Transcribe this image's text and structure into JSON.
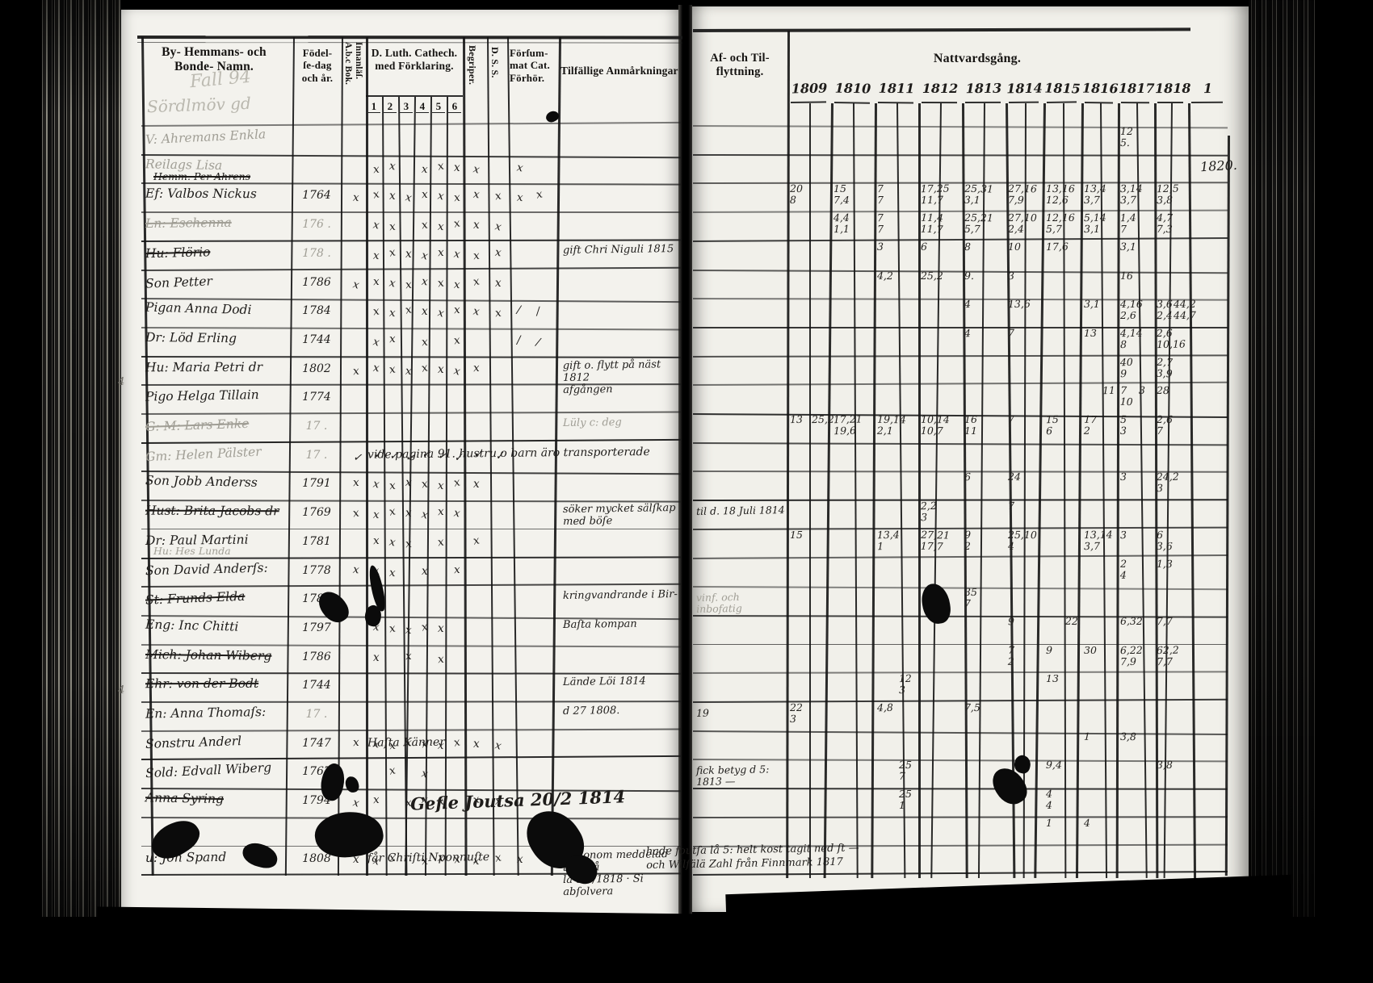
{
  "document_type": "Swedish parish catechism and communion ledger (scanned book spread)",
  "left_page": {
    "headers": {
      "name_col": "By- Hemmans- och\nBonde- Namn.",
      "birth_col": "Födel-\nſe-dag\noch år.",
      "abc_col": "A.b.c Bok.\nInnanläſ.",
      "catechism_col": "D. Luth. Cathech.\nmed Förklaring.",
      "catechism_subcols": [
        "1",
        "2",
        "3",
        "4",
        "5",
        "6"
      ],
      "begriper_col": "Begriper.",
      "dss_col": "D. S. S.",
      "forsummat_col": "Förſum-\nmat Cat.\nFörhör.",
      "remarks_col": "Tilfällige Anmårkningar"
    },
    "flourish": [
      "Fall 94",
      "Sördlmöv gd"
    ],
    "margin_marks": [
      "4",
      "4"
    ]
  },
  "right_page": {
    "headers": {
      "afflytt_col": "Af- och Til-\nflyttning.",
      "nattvard_col": "Nattvardsgång.",
      "years": [
        "1809",
        "1810",
        "1811",
        "1812",
        "1813",
        "1814",
        "1815",
        "1816",
        "1817",
        "1818",
        "1"
      ]
    },
    "annotations": {
      "year_note": "1820.",
      "bottom_note": "hade foutſa lå 5: helt kost tagit ned ſt —\noch Wilſälä Zahl från Finnmark 1817"
    }
  },
  "rows": [
    {
      "name": "V: Ahremans  Enkla",
      "ns": "faint",
      "birth": "",
      "marks": "",
      "natt": [
        [
          8,
          0,
          "12\n5."
        ]
      ]
    },
    {
      "name": "Reilags Lisa",
      "ns": "faint",
      "name2": "Hemm. Per Ahrens",
      "n2s": "struck",
      "birth": "",
      "marks": ".xx.xxxx.x.",
      "natt": []
    },
    {
      "name": "Ef: Valbos Nickus",
      "birth": "1764",
      "marks": "xxxxxxxxxxx",
      "natt": [
        [
          0,
          0,
          "20\n8"
        ],
        [
          1,
          0,
          "15\n7,4"
        ],
        [
          2,
          0,
          "7\n7"
        ],
        [
          3,
          0,
          "17,25\n11,7"
        ],
        [
          4,
          0,
          "25,31\n3,1"
        ],
        [
          5,
          0,
          "27,16\n7,9"
        ],
        [
          6,
          0,
          "13,16\n12,6"
        ],
        [
          7,
          0,
          "13,4\n3,7"
        ],
        [
          8,
          0,
          "3,14\n3,7"
        ],
        [
          9,
          0,
          "12,5\n3,8"
        ]
      ]
    },
    {
      "name": "Ln: Eschenna",
      "ns": "struck-faint",
      "birth": "176 .",
      "bs": "faint",
      "marks": ".xx.xxxxx..",
      "natt": [
        [
          1,
          0,
          "4,4\n1,1"
        ],
        [
          2,
          0,
          "7\n7"
        ],
        [
          3,
          0,
          "11,4\n11,7"
        ],
        [
          4,
          0,
          "25,21\n5,7"
        ],
        [
          5,
          0,
          "27,10\n2,4"
        ],
        [
          6,
          0,
          "12,16\n5,7"
        ],
        [
          7,
          0,
          "5,14\n3,1"
        ],
        [
          8,
          0,
          "1,4\n7"
        ],
        [
          9,
          0,
          "4,7\n7,3"
        ]
      ]
    },
    {
      "name": "Hu: Flörio",
      "ns": "struck",
      "birth": "178 .",
      "bs": "faint",
      "marks": ".xxxxxxxx..",
      "remark": "gift Chri Niguli 1815",
      "natt": [
        [
          2,
          0,
          "3"
        ],
        [
          3,
          0,
          "6"
        ],
        [
          4,
          0,
          "8"
        ],
        [
          5,
          0,
          "10"
        ],
        [
          6,
          0,
          "17,6"
        ],
        [
          8,
          0,
          "3,1"
        ]
      ]
    },
    {
      "name": "Son Petter",
      "birth": "1786",
      "marks": "xxxxxxxxx..",
      "natt": [
        [
          2,
          0,
          "4,2"
        ],
        [
          3,
          0,
          "25,2"
        ],
        [
          4,
          0,
          "9."
        ],
        [
          5,
          0,
          "3"
        ],
        [
          8,
          0,
          "16"
        ]
      ]
    },
    {
      "name": "Pigan Anna Dodi",
      "birth": "1784",
      "marks": ".xxxxxxxx//",
      "natt": [
        [
          4,
          0,
          "4"
        ],
        [
          5,
          0,
          "13,6"
        ],
        [
          7,
          0,
          "3,1"
        ],
        [
          8,
          0,
          "4,16\n2,6"
        ],
        [
          9,
          0,
          "3,6\n2,4"
        ],
        [
          9,
          1,
          "44,2\n44,7"
        ]
      ]
    },
    {
      "name": "Dr: Löd Erling",
      "birth": "1744",
      "marks": ".xx.x.x..//",
      "natt": [
        [
          4,
          0,
          "4"
        ],
        [
          5,
          0,
          "7"
        ],
        [
          7,
          0,
          "13"
        ],
        [
          8,
          0,
          "4,14\n8"
        ],
        [
          9,
          0,
          "2,6\n10,16"
        ]
      ]
    },
    {
      "name": "Hu: Maria Petri dr",
      "birth": "1802",
      "marks": "xxxxxxxx...",
      "remark": "gift o. flytt på näst 1812\nafgången",
      "natt": [
        [
          8,
          0,
          "40\n9"
        ],
        [
          9,
          0,
          "2,7\n3,9"
        ]
      ]
    },
    {
      "name": "Pigo Helga Tillain",
      "birth": "1774",
      "marks": "...........",
      "natt": [
        [
          7,
          1,
          "11"
        ],
        [
          8,
          0,
          "7\n10"
        ],
        [
          8,
          1,
          "3"
        ],
        [
          9,
          0,
          "28"
        ]
      ]
    },
    {
      "name": "G: M: Lars Enke",
      "ns": "struck-faint",
      "birth": "17 .",
      "bs": "faint",
      "marks": "...........",
      "remark": "Lüly c: deg",
      "rs": "faint",
      "natt": [
        [
          0,
          0,
          "13"
        ],
        [
          0,
          1,
          "25,2"
        ],
        [
          1,
          0,
          "17,21\n19,6"
        ],
        [
          2,
          0,
          "19,14\n2,1"
        ],
        [
          3,
          0,
          "10,14\n10,7"
        ],
        [
          4,
          0,
          "16\n11"
        ],
        [
          5,
          0,
          "7"
        ],
        [
          6,
          0,
          "15\n6"
        ],
        [
          7,
          0,
          "17\n2"
        ],
        [
          8,
          0,
          "5\n3"
        ],
        [
          9,
          0,
          "2,6\n7"
        ]
      ]
    },
    {
      "name": "Gm: Helen Pälster",
      "ns": "faint",
      "birth": "17 .",
      "bs": "faint",
      "marks": "vvvvvvvvv..",
      "note_mid": "vide pagina 91.  hustru o barn äro transporterade",
      "natt": []
    },
    {
      "name": "Son Jobb Anderss",
      "birth": "1791",
      "marks": "xxxxxxxx...",
      "natt": [
        [
          4,
          0,
          "6"
        ],
        [
          5,
          0,
          "24"
        ],
        [
          8,
          0,
          "3"
        ],
        [
          9,
          0,
          "24,2\n3"
        ]
      ]
    },
    {
      "name": "Hust: Brita Jacobs dr",
      "ns": "struck",
      "birth": "1769",
      "marks": "xxxxxxx....",
      "remark": "söker mycket sälſkap med böſe",
      "afflytt": "til d. 18 Juli 1814",
      "natt": [
        [
          3,
          0,
          "2,2\n3"
        ],
        [
          5,
          0,
          "7"
        ]
      ]
    },
    {
      "name": "Dr: Paul Martini",
      "birth": "1781",
      "name2": "Hu: Hes Lunda",
      "n2s": "faint",
      "marks": ".xxx.x.x...",
      "natt": [
        [
          0,
          0,
          "15"
        ],
        [
          2,
          0,
          "13,4\n1"
        ],
        [
          3,
          0,
          "27,21\n17,7"
        ],
        [
          4,
          0,
          "9\n2"
        ],
        [
          5,
          0,
          "25,10\n4"
        ],
        [
          7,
          0,
          "13,14\n3,7"
        ],
        [
          8,
          0,
          "3"
        ],
        [
          9,
          0,
          "6\n3,6"
        ]
      ]
    },
    {
      "name": "Son David Anderſs:",
      "birth": "1778",
      "marks": "xxx.x.x....",
      "natt": [
        [
          8,
          0,
          "2\n4"
        ],
        [
          9,
          0,
          "1,3"
        ]
      ]
    },
    {
      "name": "St: Frunds Elda",
      "ns": "struck",
      "birth": "1786",
      "remark": "kringvandrande i Bir-",
      "afflytt": "vinf. och inbofatig",
      "as": "faint",
      "natt": [
        [
          4,
          0,
          "35\n7"
        ]
      ]
    },
    {
      "name": "Eng: Inc Chitti",
      "birth": "1797",
      "marks": ".xxxxx.....",
      "remark": "Baſta kompan",
      "natt": [
        [
          5,
          0,
          "9"
        ],
        [
          6,
          1,
          "22"
        ],
        [
          8,
          0,
          "6,32"
        ],
        [
          9,
          0,
          "7,7"
        ]
      ]
    },
    {
      "name": "Mich: Johan Wiberg",
      "ns": "struck",
      "birth": "1786",
      "marks": ".x.x.x.....",
      "natt": [
        [
          5,
          0,
          "7\n2"
        ],
        [
          6,
          0,
          "9"
        ],
        [
          7,
          0,
          "30"
        ],
        [
          8,
          0,
          "6,22\n7,9"
        ],
        [
          9,
          0,
          "62,2\n7,7"
        ]
      ]
    },
    {
      "name": "Ehr: von der Bodt",
      "ns": "struck",
      "birth": "1744",
      "remark": "Lände Löi 1814",
      "natt": [
        [
          2,
          1,
          "12\n3"
        ],
        [
          6,
          0,
          "13"
        ]
      ]
    },
    {
      "name": "En: Anna Thomaſs:",
      "birth": "17 .",
      "bs": "faint",
      "remark": "d 27 1808.",
      "afflytt": "19",
      "natt": [
        [
          0,
          0,
          "22\n3"
        ],
        [
          2,
          0,
          "4,8"
        ],
        [
          4,
          0,
          "7,5"
        ]
      ]
    },
    {
      "name": "Sonstru Anderl",
      "birth": "1747",
      "marks": "xxxxxxxxx..",
      "note_mid": "Haſta Känner",
      "natt": [
        [
          7,
          0,
          "1"
        ],
        [
          8,
          0,
          "3,8"
        ]
      ]
    },
    {
      "name": "Sold: Edvall Wiberg",
      "birth": "1767",
      "marks": "..x.x......",
      "afflytt": "fick betyg d 5: 1813 —",
      "natt": [
        [
          2,
          1,
          "25\n7"
        ],
        [
          6,
          0,
          "9,4"
        ],
        [
          9,
          0,
          "3,8"
        ]
      ]
    },
    {
      "name": "Anna Syring",
      "ns": "struck",
      "birth": "1794",
      "marks": "xx.xxx.xx..",
      "note_big": "Gefle Joutsa 20/2 1814",
      "natt": [
        [
          2,
          1,
          "25\n1"
        ],
        [
          6,
          0,
          "4\n4"
        ]
      ]
    },
    {
      "name": "",
      "birth": "",
      "marks": "",
      "natt": [
        [
          6,
          0,
          "1"
        ],
        [
          7,
          0,
          "4"
        ]
      ]
    },
    {
      "name": "u: Jon Spand",
      "birth": "1808",
      "marks": "xxx.xxxxxx.",
      "note_mid": "får Chriſti Nponnuſte",
      "remark": "åt honom meddelad t. o. på\nla d 3/1818 · Si abſolvera",
      "natt": []
    }
  ]
}
